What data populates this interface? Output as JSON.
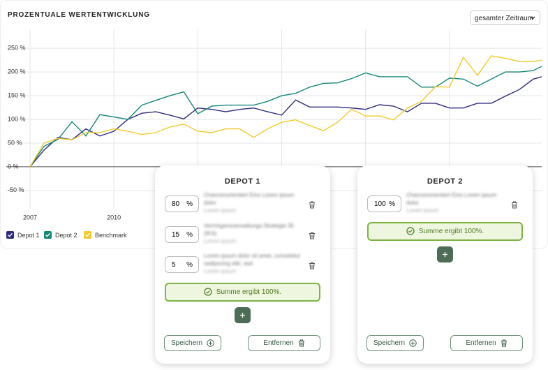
{
  "header": {
    "title": "PROZENTUALE WERTENTWICKLUNG",
    "range_select": "gesamter Zeitraum"
  },
  "chart_data": {
    "type": "line",
    "x": [
      2007,
      2007.5,
      2008,
      2008.5,
      2009,
      2009.5,
      2010,
      2010.5,
      2011,
      2011.5,
      2012,
      2012.5,
      2013,
      2013.5,
      2014,
      2014.5,
      2015,
      2015.5,
      2016,
      2016.5,
      2017,
      2017.5,
      2018,
      2018.5,
      2019,
      2019.5,
      2020,
      2020.5,
      2021,
      2021.5,
      2022,
      2022.5,
      2023,
      2023.5,
      2024,
      2024.5,
      2025,
      2025.3
    ],
    "xlim": [
      2007,
      2025.3
    ],
    "xticks": [
      2007,
      2010,
      2013,
      2016,
      2019,
      2022
    ],
    "ylim": [
      -90,
      290
    ],
    "yticks": [
      {
        "value": 250,
        "label": "250 %"
      },
      {
        "value": 200,
        "label": "200 %"
      },
      {
        "value": 150,
        "label": "150 %"
      },
      {
        "value": 100,
        "label": "100 %"
      },
      {
        "value": 50,
        "label": "50 %"
      },
      {
        "value": 0,
        "label": "0 %"
      },
      {
        "value": -50,
        "label": "-50 %"
      }
    ],
    "grid": true,
    "series": [
      {
        "name": "Depot 1",
        "color": "#2e2a7c",
        "values": [
          0,
          35,
          62,
          57,
          80,
          65,
          75,
          100,
          113,
          116,
          109,
          101,
          124,
          121,
          116,
          121,
          124,
          116,
          109,
          141,
          126,
          126,
          126,
          124,
          121,
          131,
          128,
          116,
          134,
          134,
          124,
          124,
          134,
          134,
          149,
          163,
          185,
          190
        ]
      },
      {
        "name": "Depot 2",
        "color": "#16877a",
        "values": [
          0,
          43,
          58,
          95,
          65,
          110,
          105,
          100,
          130,
          140,
          150,
          158,
          112,
          128,
          130,
          130,
          130,
          138,
          150,
          155,
          168,
          176,
          177,
          186,
          198,
          190,
          190,
          190,
          168,
          168,
          187,
          185,
          170,
          185,
          200,
          200,
          203,
          212
        ]
      },
      {
        "name": "Benchmark",
        "color": "#f1cb2c",
        "values": [
          0,
          50,
          60,
          57,
          72,
          72,
          80,
          75,
          68,
          72,
          84,
          90,
          75,
          72,
          80,
          80,
          62,
          80,
          94,
          99,
          87,
          76,
          94,
          121,
          107,
          107,
          99,
          124,
          138,
          169,
          168,
          231,
          193,
          234,
          229,
          222,
          222,
          225
        ]
      }
    ]
  },
  "depots": [
    {
      "title": "DEPOT 1",
      "positions": [
        {
          "percent": 80,
          "unit": "%",
          "name": "Chancenorientiert Eins Lorem ipsum dolor",
          "note": "Lorem ipsum"
        },
        {
          "percent": 15,
          "unit": "%",
          "name": "Vermögensverwaltungs-Strategie 35 (IKS)",
          "note": "Lorem ipsum"
        },
        {
          "percent": 5,
          "unit": "%",
          "name": "Lorem ipsum dolor sit amet, consetetur sadipscing elitr, sed",
          "note": "Lorem ipsum"
        }
      ],
      "status": "Summe ergibt 100%.",
      "save": "Speichern",
      "remove": "Entfernen"
    },
    {
      "title": "DEPOT 2",
      "positions": [
        {
          "percent": 100,
          "unit": "%",
          "name": "Chancenorientiert Eins Lorem ipsum dolor",
          "note": "Lorem ipsum"
        }
      ],
      "status": "Summe ergibt 100%.",
      "save": "Speichern",
      "remove": "Entfernen"
    }
  ]
}
